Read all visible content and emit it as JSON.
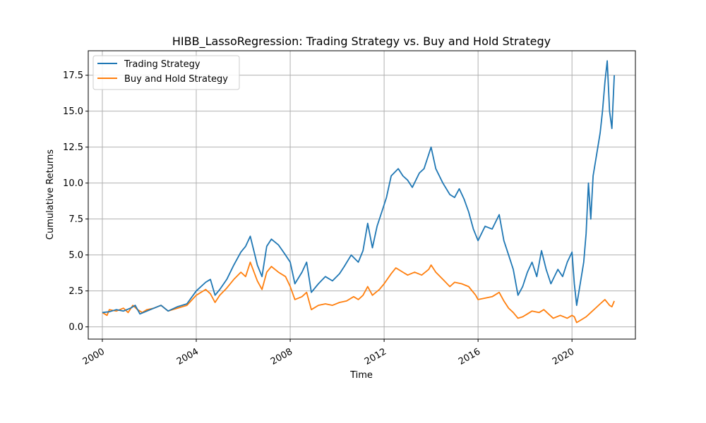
{
  "chart_data": {
    "type": "line",
    "title": "HIBB_LassoRegression: Trading Strategy vs. Buy and Hold Strategy",
    "xlabel": "Time",
    "ylabel": "Cumulative Returns",
    "xlim": [
      1999.4,
      2022.7
    ],
    "ylim": [
      -0.85,
      19.2
    ],
    "xticks": [
      2000,
      2004,
      2008,
      2012,
      2016,
      2020
    ],
    "xtick_labels": [
      "2000",
      "2004",
      "2008",
      "2012",
      "2016",
      "2020"
    ],
    "yticks": [
      0.0,
      2.5,
      5.0,
      7.5,
      10.0,
      12.5,
      15.0,
      17.5
    ],
    "ytick_labels": [
      "0.0",
      "2.5",
      "5.0",
      "7.5",
      "10.0",
      "12.5",
      "15.0",
      "17.5"
    ],
    "grid": true,
    "legend_position": "upper left",
    "series": [
      {
        "name": "Trading Strategy",
        "color": "#1f77b4",
        "points": [
          [
            2000.0,
            1.0
          ],
          [
            2000.3,
            1.05
          ],
          [
            2000.6,
            1.2
          ],
          [
            2000.9,
            1.1
          ],
          [
            2001.2,
            1.3
          ],
          [
            2001.4,
            1.5
          ],
          [
            2001.6,
            0.9
          ],
          [
            2001.9,
            1.1
          ],
          [
            2002.2,
            1.3
          ],
          [
            2002.5,
            1.5
          ],
          [
            2002.8,
            1.1
          ],
          [
            2003.2,
            1.4
          ],
          [
            2003.6,
            1.6
          ],
          [
            2004.0,
            2.5
          ],
          [
            2004.4,
            3.1
          ],
          [
            2004.6,
            3.3
          ],
          [
            2004.8,
            2.2
          ],
          [
            2005.0,
            2.6
          ],
          [
            2005.3,
            3.3
          ],
          [
            2005.6,
            4.3
          ],
          [
            2005.9,
            5.2
          ],
          [
            2006.1,
            5.6
          ],
          [
            2006.3,
            6.3
          ],
          [
            2006.6,
            4.3
          ],
          [
            2006.8,
            3.5
          ],
          [
            2007.0,
            5.6
          ],
          [
            2007.2,
            6.1
          ],
          [
            2007.5,
            5.7
          ],
          [
            2007.8,
            5.0
          ],
          [
            2008.0,
            4.5
          ],
          [
            2008.2,
            3.0
          ],
          [
            2008.5,
            3.8
          ],
          [
            2008.7,
            4.5
          ],
          [
            2008.9,
            2.4
          ],
          [
            2009.2,
            3.0
          ],
          [
            2009.5,
            3.5
          ],
          [
            2009.8,
            3.2
          ],
          [
            2010.1,
            3.7
          ],
          [
            2010.3,
            4.2
          ],
          [
            2010.6,
            5.0
          ],
          [
            2010.9,
            4.5
          ],
          [
            2011.1,
            5.3
          ],
          [
            2011.3,
            7.2
          ],
          [
            2011.5,
            5.5
          ],
          [
            2011.7,
            7.0
          ],
          [
            2011.9,
            8.0
          ],
          [
            2012.1,
            9.0
          ],
          [
            2012.3,
            10.5
          ],
          [
            2012.6,
            11.0
          ],
          [
            2012.8,
            10.5
          ],
          [
            2013.0,
            10.2
          ],
          [
            2013.2,
            9.7
          ],
          [
            2013.5,
            10.7
          ],
          [
            2013.7,
            11.0
          ],
          [
            2013.9,
            12.0
          ],
          [
            2014.0,
            12.5
          ],
          [
            2014.2,
            11.0
          ],
          [
            2014.5,
            10.0
          ],
          [
            2014.8,
            9.2
          ],
          [
            2015.0,
            9.0
          ],
          [
            2015.2,
            9.6
          ],
          [
            2015.4,
            8.9
          ],
          [
            2015.6,
            8.0
          ],
          [
            2015.8,
            6.8
          ],
          [
            2016.0,
            6.0
          ],
          [
            2016.3,
            7.0
          ],
          [
            2016.6,
            6.8
          ],
          [
            2016.9,
            7.8
          ],
          [
            2017.1,
            6.0
          ],
          [
            2017.3,
            5.0
          ],
          [
            2017.5,
            4.0
          ],
          [
            2017.7,
            2.2
          ],
          [
            2017.9,
            2.8
          ],
          [
            2018.1,
            3.8
          ],
          [
            2018.3,
            4.5
          ],
          [
            2018.5,
            3.5
          ],
          [
            2018.7,
            5.3
          ],
          [
            2018.9,
            4.0
          ],
          [
            2019.1,
            3.0
          ],
          [
            2019.4,
            4.0
          ],
          [
            2019.6,
            3.5
          ],
          [
            2019.8,
            4.5
          ],
          [
            2020.0,
            5.2
          ],
          [
            2020.1,
            3.0
          ],
          [
            2020.2,
            1.5
          ],
          [
            2020.4,
            3.5
          ],
          [
            2020.5,
            4.5
          ],
          [
            2020.6,
            6.5
          ],
          [
            2020.7,
            10.0
          ],
          [
            2020.8,
            7.5
          ],
          [
            2020.9,
            10.5
          ],
          [
            2021.1,
            12.5
          ],
          [
            2021.2,
            13.5
          ],
          [
            2021.3,
            15.0
          ],
          [
            2021.4,
            17.0
          ],
          [
            2021.5,
            18.5
          ],
          [
            2021.6,
            15.0
          ],
          [
            2021.7,
            13.8
          ],
          [
            2021.8,
            17.5
          ]
        ]
      },
      {
        "name": "Buy and Hold Strategy",
        "color": "#ff7f0e",
        "points": [
          [
            2000.0,
            1.0
          ],
          [
            2000.2,
            0.8
          ],
          [
            2000.3,
            1.2
          ],
          [
            2000.6,
            1.1
          ],
          [
            2000.9,
            1.3
          ],
          [
            2001.1,
            1.0
          ],
          [
            2001.3,
            1.5
          ],
          [
            2001.5,
            1.2
          ],
          [
            2001.7,
            1.0
          ],
          [
            2001.9,
            1.2
          ],
          [
            2002.2,
            1.3
          ],
          [
            2002.5,
            1.5
          ],
          [
            2002.8,
            1.1
          ],
          [
            2003.2,
            1.3
          ],
          [
            2003.6,
            1.5
          ],
          [
            2004.0,
            2.2
          ],
          [
            2004.4,
            2.6
          ],
          [
            2004.6,
            2.3
          ],
          [
            2004.8,
            1.7
          ],
          [
            2005.0,
            2.2
          ],
          [
            2005.3,
            2.7
          ],
          [
            2005.6,
            3.3
          ],
          [
            2005.9,
            3.8
          ],
          [
            2006.1,
            3.5
          ],
          [
            2006.3,
            4.5
          ],
          [
            2006.6,
            3.2
          ],
          [
            2006.8,
            2.6
          ],
          [
            2007.0,
            3.8
          ],
          [
            2007.2,
            4.2
          ],
          [
            2007.5,
            3.8
          ],
          [
            2007.8,
            3.5
          ],
          [
            2008.0,
            2.8
          ],
          [
            2008.2,
            1.9
          ],
          [
            2008.5,
            2.1
          ],
          [
            2008.7,
            2.4
          ],
          [
            2008.9,
            1.2
          ],
          [
            2009.2,
            1.5
          ],
          [
            2009.5,
            1.6
          ],
          [
            2009.8,
            1.5
          ],
          [
            2010.1,
            1.7
          ],
          [
            2010.4,
            1.8
          ],
          [
            2010.7,
            2.1
          ],
          [
            2010.9,
            1.9
          ],
          [
            2011.1,
            2.2
          ],
          [
            2011.3,
            2.8
          ],
          [
            2011.5,
            2.2
          ],
          [
            2011.8,
            2.6
          ],
          [
            2012.0,
            3.0
          ],
          [
            2012.3,
            3.7
          ],
          [
            2012.5,
            4.1
          ],
          [
            2012.8,
            3.8
          ],
          [
            2013.0,
            3.6
          ],
          [
            2013.3,
            3.8
          ],
          [
            2013.6,
            3.6
          ],
          [
            2013.9,
            4.0
          ],
          [
            2014.0,
            4.3
          ],
          [
            2014.2,
            3.8
          ],
          [
            2014.5,
            3.3
          ],
          [
            2014.8,
            2.8
          ],
          [
            2015.0,
            3.1
          ],
          [
            2015.3,
            3.0
          ],
          [
            2015.6,
            2.8
          ],
          [
            2015.9,
            2.2
          ],
          [
            2016.0,
            1.9
          ],
          [
            2016.3,
            2.0
          ],
          [
            2016.6,
            2.1
          ],
          [
            2016.9,
            2.4
          ],
          [
            2017.1,
            1.8
          ],
          [
            2017.3,
            1.3
          ],
          [
            2017.5,
            1.0
          ],
          [
            2017.7,
            0.6
          ],
          [
            2017.9,
            0.7
          ],
          [
            2018.1,
            0.9
          ],
          [
            2018.3,
            1.1
          ],
          [
            2018.6,
            1.0
          ],
          [
            2018.8,
            1.2
          ],
          [
            2019.0,
            0.9
          ],
          [
            2019.2,
            0.6
          ],
          [
            2019.5,
            0.8
          ],
          [
            2019.8,
            0.6
          ],
          [
            2020.0,
            0.8
          ],
          [
            2020.1,
            0.7
          ],
          [
            2020.2,
            0.3
          ],
          [
            2020.4,
            0.5
          ],
          [
            2020.6,
            0.7
          ],
          [
            2020.8,
            1.0
          ],
          [
            2021.0,
            1.3
          ],
          [
            2021.2,
            1.6
          ],
          [
            2021.4,
            1.9
          ],
          [
            2021.6,
            1.5
          ],
          [
            2021.7,
            1.4
          ],
          [
            2021.8,
            1.8
          ]
        ]
      }
    ]
  }
}
